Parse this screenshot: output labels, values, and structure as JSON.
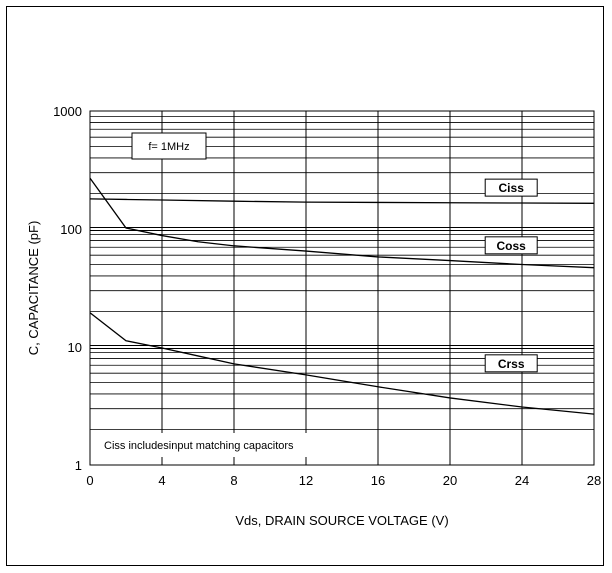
{
  "chart_data": {
    "type": "line",
    "title": "",
    "xlabel": "Vds, DRAIN SOURCE VOLTAGE (V)",
    "ylabel": "C, CAPACITANCE (pF)",
    "xlim": [
      0,
      28
    ],
    "ylim": [
      1,
      1000
    ],
    "y_scale": "log",
    "grid": true,
    "x_ticks": [
      0,
      4,
      8,
      12,
      16,
      20,
      24,
      28
    ],
    "x_tick_labels": [
      "0",
      "4",
      "8",
      "12",
      "16",
      "20",
      "24",
      "28"
    ],
    "y_ticks": [
      1,
      10,
      100,
      1000
    ],
    "y_tick_labels": [
      "1",
      "10",
      "100",
      "1000"
    ],
    "annotations": [
      "f= 1MHz",
      "Ciss includesinput matching capacitors"
    ],
    "series": [
      {
        "name": "Ciss",
        "x": [
          0,
          2,
          4,
          8,
          12,
          16,
          20,
          24,
          28
        ],
        "y": [
          180,
          178,
          176,
          172,
          169,
          168,
          167,
          166,
          165
        ]
      },
      {
        "name": "Coss",
        "x": [
          0,
          2,
          4,
          6,
          8,
          12,
          16,
          20,
          24,
          28
        ],
        "y": [
          270,
          102,
          88,
          78,
          72,
          65,
          58,
          54,
          50,
          47
        ]
      },
      {
        "name": "Crss",
        "x": [
          0,
          2,
          4,
          6,
          8,
          12,
          16,
          20,
          24,
          28
        ],
        "y": [
          19.5,
          11.3,
          9.8,
          8.4,
          7.2,
          5.8,
          4.6,
          3.7,
          3.1,
          2.7
        ]
      }
    ]
  }
}
